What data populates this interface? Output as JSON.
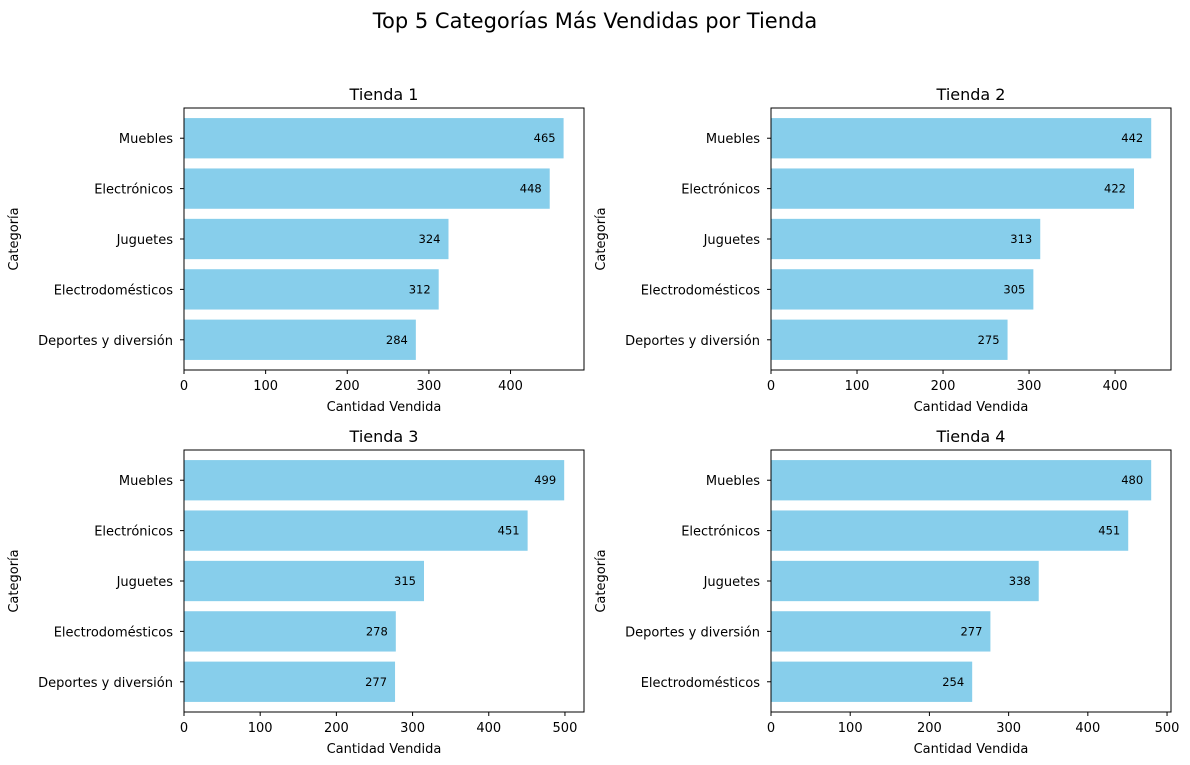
{
  "figure": {
    "title": "Top 5 Categorías Más Vendidas por Tienda",
    "bar_color": "#87CEEB"
  },
  "chart_data": [
    {
      "type": "bar",
      "orientation": "horizontal",
      "title": "Tienda 1",
      "xlabel": "Cantidad Vendida",
      "ylabel": "Categoría",
      "categories": [
        "Muebles",
        "Electrónicos",
        "Juguetes",
        "Electrodomésticos",
        "Deportes y diversión"
      ],
      "values": [
        465,
        448,
        324,
        312,
        284
      ],
      "xlim": [
        0,
        490
      ],
      "xticks": [
        0,
        100,
        200,
        300,
        400
      ]
    },
    {
      "type": "bar",
      "orientation": "horizontal",
      "title": "Tienda 2",
      "xlabel": "Cantidad Vendida",
      "ylabel": "Categoría",
      "categories": [
        "Muebles",
        "Electrónicos",
        "Juguetes",
        "Electrodomésticos",
        "Deportes y diversión"
      ],
      "values": [
        442,
        422,
        313,
        305,
        275
      ],
      "xlim": [
        0,
        465
      ],
      "xticks": [
        0,
        100,
        200,
        300,
        400
      ]
    },
    {
      "type": "bar",
      "orientation": "horizontal",
      "title": "Tienda 3",
      "xlabel": "Cantidad Vendida",
      "ylabel": "Categoría",
      "categories": [
        "Muebles",
        "Electrónicos",
        "Juguetes",
        "Electrodomésticos",
        "Deportes y diversión"
      ],
      "values": [
        499,
        451,
        315,
        278,
        277
      ],
      "xlim": [
        0,
        525
      ],
      "xticks": [
        0,
        100,
        200,
        300,
        400,
        500
      ]
    },
    {
      "type": "bar",
      "orientation": "horizontal",
      "title": "Tienda 4",
      "xlabel": "Cantidad Vendida",
      "ylabel": "Categoría",
      "categories": [
        "Muebles",
        "Electrónicos",
        "Juguetes",
        "Deportes y diversión",
        "Electrodomésticos"
      ],
      "values": [
        480,
        451,
        338,
        277,
        254
      ],
      "xlim": [
        0,
        505
      ],
      "xticks": [
        0,
        100,
        200,
        300,
        400,
        500
      ]
    }
  ]
}
